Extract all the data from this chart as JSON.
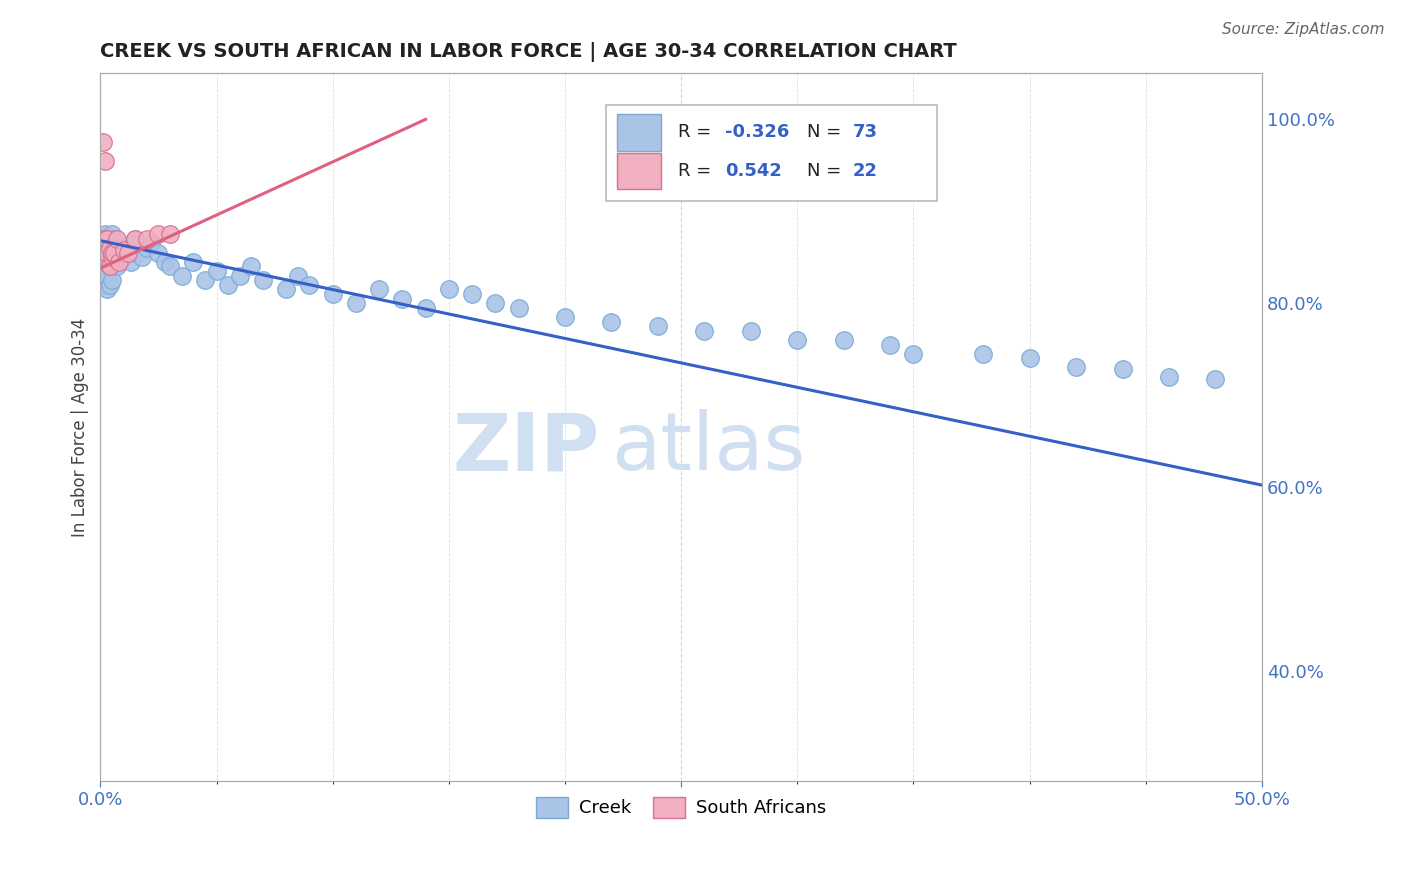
{
  "title": "CREEK VS SOUTH AFRICAN IN LABOR FORCE | AGE 30-34 CORRELATION CHART",
  "source_text": "Source: ZipAtlas.com",
  "ylabel": "In Labor Force | Age 30-34",
  "xlim": [
    0.0,
    0.5
  ],
  "ylim": [
    0.28,
    1.05
  ],
  "yticks_right": [
    0.4,
    0.6,
    0.8,
    1.0
  ],
  "ytick_right_labels": [
    "40.0%",
    "60.0%",
    "80.0%",
    "100.0%"
  ],
  "creek_color": "#aac4e8",
  "creek_edge_color": "#7aaad4",
  "creek_line_color": "#3560c8",
  "south_african_color": "#f0b0c0",
  "south_african_edge_color": "#d87090",
  "south_african_line_color": "#e06080",
  "watermark_color": "#d0e0f0",
  "background_color": "#ffffff",
  "grid_color": "#cccccc",
  "creek_x": [
    0.001,
    0.001,
    0.001,
    0.002,
    0.002,
    0.002,
    0.002,
    0.003,
    0.003,
    0.003,
    0.003,
    0.003,
    0.004,
    0.004,
    0.004,
    0.004,
    0.005,
    0.005,
    0.005,
    0.005,
    0.006,
    0.006,
    0.007,
    0.007,
    0.008,
    0.009,
    0.01,
    0.011,
    0.012,
    0.013,
    0.015,
    0.016,
    0.018,
    0.02,
    0.022,
    0.025,
    0.028,
    0.03,
    0.035,
    0.04,
    0.045,
    0.05,
    0.055,
    0.06,
    0.065,
    0.07,
    0.08,
    0.085,
    0.09,
    0.1,
    0.11,
    0.12,
    0.13,
    0.14,
    0.15,
    0.16,
    0.17,
    0.18,
    0.2,
    0.22,
    0.24,
    0.26,
    0.28,
    0.3,
    0.32,
    0.34,
    0.35,
    0.38,
    0.4,
    0.42,
    0.44,
    0.46,
    0.48
  ],
  "creek_y": [
    0.86,
    0.84,
    0.82,
    0.875,
    0.855,
    0.84,
    0.82,
    0.87,
    0.855,
    0.84,
    0.83,
    0.815,
    0.87,
    0.855,
    0.84,
    0.82,
    0.875,
    0.86,
    0.845,
    0.825,
    0.87,
    0.845,
    0.865,
    0.84,
    0.855,
    0.848,
    0.862,
    0.852,
    0.858,
    0.845,
    0.87,
    0.855,
    0.85,
    0.86,
    0.865,
    0.855,
    0.845,
    0.84,
    0.83,
    0.845,
    0.825,
    0.835,
    0.82,
    0.83,
    0.84,
    0.825,
    0.815,
    0.83,
    0.82,
    0.81,
    0.8,
    0.815,
    0.805,
    0.795,
    0.815,
    0.81,
    0.8,
    0.795,
    0.785,
    0.78,
    0.775,
    0.77,
    0.77,
    0.76,
    0.76,
    0.755,
    0.745,
    0.745,
    0.74,
    0.73,
    0.728,
    0.72,
    0.718
  ],
  "sa_x": [
    0.001,
    0.001,
    0.001,
    0.002,
    0.002,
    0.002,
    0.003,
    0.003,
    0.003,
    0.004,
    0.004,
    0.005,
    0.005,
    0.006,
    0.007,
    0.008,
    0.01,
    0.012,
    0.015,
    0.02,
    0.025,
    0.03
  ],
  "sa_y": [
    0.86,
    0.975,
    0.87,
    0.955,
    0.86,
    0.87,
    0.845,
    0.87,
    0.855,
    0.86,
    0.84,
    0.85,
    0.855,
    0.855,
    0.87,
    0.845,
    0.858,
    0.855,
    0.87,
    0.87,
    0.875,
    0.875
  ],
  "creek_trend_x0": 0.0,
  "creek_trend_x1": 0.5,
  "creek_trend_y0": 0.868,
  "creek_trend_y1": 0.602,
  "sa_trend_x0": 0.0,
  "sa_trend_x1": 0.14,
  "sa_trend_y0": 0.838,
  "sa_trend_y1": 1.0
}
